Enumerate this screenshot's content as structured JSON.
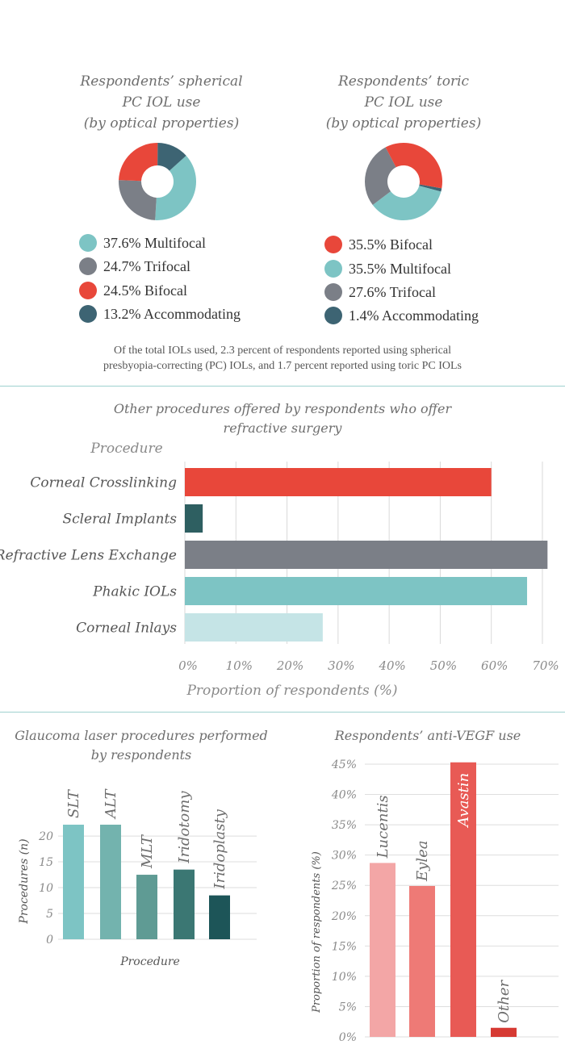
{
  "colors": {
    "teal": "#7dc4c4",
    "gray": "#7b7f87",
    "red": "#e8473a",
    "navy": "#3d6473",
    "light_teal": "#c5e4e6",
    "dark_teal": "#2e5f61",
    "divider": "#9fd1cf"
  },
  "chart_data": [
    {
      "type": "pie",
      "title": "Respondents’ spherical PC IOL use (by optical properties)",
      "title_lines": [
        "Respondents’ spherical",
        "PC IOL use",
        "(by optical properties)"
      ],
      "slices": [
        {
          "label": "Multifocal",
          "value": 37.6,
          "legend": "37.6% Multifocal",
          "color": "#7dc4c4"
        },
        {
          "label": "Trifocal",
          "value": 24.7,
          "legend": "24.7% Trifocal",
          "color": "#7b7f87"
        },
        {
          "label": "Bifocal",
          "value": 24.5,
          "legend": "24.5% Bifocal",
          "color": "#e8473a"
        },
        {
          "label": "Accommodating",
          "value": 13.2,
          "legend": "13.2% Accommodating",
          "color": "#3d6473"
        }
      ]
    },
    {
      "type": "pie",
      "title": "Respondents’ toric PC IOL use (by optical properties)",
      "title_lines": [
        "Respondents’ toric",
        "PC IOL use",
        "(by optical properties)"
      ],
      "slices": [
        {
          "label": "Bifocal",
          "value": 35.5,
          "legend": "35.5% Bifocal",
          "color": "#e8473a"
        },
        {
          "label": "Multifocal",
          "value": 35.5,
          "legend": "35.5% Multifocal",
          "color": "#7dc4c4"
        },
        {
          "label": "Trifocal",
          "value": 27.6,
          "legend": "27.6% Trifocal",
          "color": "#7b7f87"
        },
        {
          "label": "Accommodating",
          "value": 1.4,
          "legend": "1.4% Accommodating",
          "color": "#3d6473"
        }
      ]
    },
    {
      "type": "bar",
      "orientation": "horizontal",
      "title": "Other procedures offered by respondents who offer refractive surgery",
      "title_lines": [
        "Other procedures offered by respondents who offer",
        "refractive surgery"
      ],
      "ylabel": "Procedure",
      "xlabel": "Proportion of respondents (%)",
      "categories": [
        "Corneal Crosslinking",
        "Scleral Implants",
        "Refractive Lens Exchange",
        "Phakic IOLs",
        "Corneal Inlays"
      ],
      "values": [
        60,
        3.5,
        71,
        67,
        27
      ],
      "colors": [
        "#e8473a",
        "#2e5f61",
        "#7b7f87",
        "#7dc4c4",
        "#c5e4e6"
      ],
      "xticks": [
        "0%",
        "10%",
        "20%",
        "30%",
        "40%",
        "50%",
        "60%",
        "70%"
      ],
      "xlim": [
        0,
        70
      ],
      "grid": true
    },
    {
      "type": "bar",
      "title": "Glaucoma laser procedures performed by respondents",
      "title_lines": [
        "Glaucoma laser procedures performed",
        "by respondents"
      ],
      "xlabel": "Procedure",
      "ylabel": "Procedures (n)",
      "categories": [
        "SLT",
        "ALT",
        "MLT",
        "Iridotomy",
        "Iridoplasty"
      ],
      "values": [
        22.2,
        22.2,
        12.5,
        13.5,
        8.5
      ],
      "colors": [
        "#7dc4c4",
        "#73b3ae",
        "#5f9b94",
        "#3b7773",
        "#1d5558"
      ],
      "yticks": [
        "0",
        "5",
        "10",
        "15",
        "20"
      ],
      "ylim": [
        0,
        22.2
      ],
      "grid": true
    },
    {
      "type": "bar",
      "title": "Respondents’ anti-VEGF use",
      "ylabel": "Proportion of respondents (%)",
      "categories": [
        "Lucentis",
        "Eylea",
        "Avastin",
        "Other"
      ],
      "values": [
        28.7,
        24.9,
        45.3,
        1.5
      ],
      "colors": [
        "#f3a6a6",
        "#ee7a76",
        "#e85a55",
        "#d63a33"
      ],
      "yticks": [
        "0%",
        "5%",
        "10%",
        "15%",
        "20%",
        "25%",
        "30%",
        "35%",
        "40%",
        "45%"
      ],
      "ylim": [
        0,
        45
      ],
      "grid": true
    }
  ],
  "note_lines": [
    "Of the total IOLs used, 2.3 percent of respondents reported using spherical",
    "presbyopia-correcting (PC) IOLs, and 1.7 percent reported using toric PC IOLs"
  ]
}
